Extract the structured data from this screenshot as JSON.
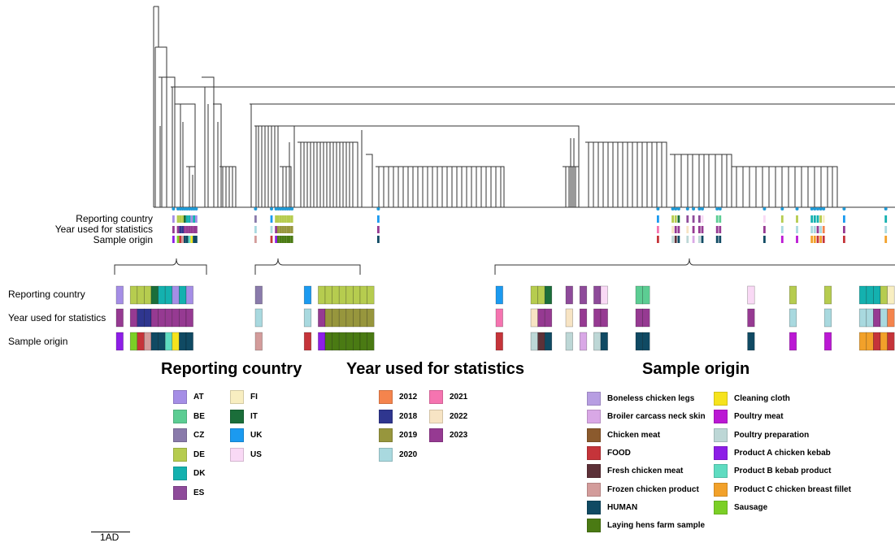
{
  "colors": {
    "AT": "#a58ee6",
    "BE": "#5ccd93",
    "CZ": "#8a7bab",
    "DE": "#b6cc4f",
    "DK": "#14b1af",
    "ES": "#8e4b9a",
    "FI": "#f8eec1",
    "IT": "#1b6e3a",
    "UK": "#1b9af0",
    "US": "#f9d9f5",
    "2012": "#f4844d",
    "2018": "#2f368f",
    "2019": "#97963d",
    "2020": "#a9d9df",
    "2021": "#f574b0",
    "2022": "#f7e4c4",
    "2023": "#963a92",
    "Boneless chicken legs": "#b79ee2",
    "Broiler carcass neck skin": "#d9a8e6",
    "Chicken meat": "#8b5a2d",
    "FOOD": "#c5343a",
    "Fresh chicken meat": "#5d3138",
    "Frozen chicken product": "#d39c9b",
    "HUMAN": "#104a63",
    "Laying hens farm sample": "#4a7a13",
    "Cleaning cloth": "#f6e31d",
    "Poultry meat": "#bb18d4",
    "Poultry preparation": "#bdd7d6",
    "Product A chicken kebab": "#8d1ee7",
    "Product B kebab product": "#5fdcc1",
    "Product C chicken breast fillet": "#f2a12a",
    "Sausage": "#7bcf26",
    "tree_line": "#333333",
    "tip_marker": "#1f9ad6"
  },
  "row_labels": [
    "Reporting country",
    "Year used for statistics",
    "Sample origin"
  ],
  "sections": {
    "country": {
      "title": "Reporting country",
      "items": [
        "AT",
        "BE",
        "CZ",
        "DE",
        "DK",
        "ES",
        "FI",
        "IT",
        "UK",
        "US"
      ]
    },
    "year": {
      "title": "Year used for statistics",
      "items": [
        "2012",
        "2018",
        "2019",
        "2020",
        "2021",
        "2022",
        "2023"
      ]
    },
    "origin": {
      "title": "Sample origin",
      "items": [
        "Boneless chicken legs",
        "Broiler carcass neck skin",
        "Chicken meat",
        "FOOD",
        "Fresh chicken meat",
        "Frozen chicken product",
        "HUMAN",
        "Laying hens farm sample",
        "Cleaning cloth",
        "Poultry meat",
        "Poultry preparation",
        "Product A chicken kebab",
        "Product B kebab product",
        "Product C chicken breast fillet",
        "Sausage"
      ]
    }
  },
  "zoom_groups": [
    [
      [
        "AT",
        "2023",
        "Product A chicken kebab"
      ],
      null,
      [
        "DE",
        "2023",
        "Sausage"
      ],
      [
        "DE",
        "2018",
        "FOOD"
      ],
      [
        "DE",
        "2018",
        "Frozen chicken product"
      ],
      [
        "IT",
        "2023",
        "HUMAN"
      ],
      [
        "DK",
        "2023",
        "HUMAN"
      ],
      [
        "DK",
        "2023",
        "Product B kebab product"
      ],
      [
        "AT",
        "2023",
        "Cleaning cloth"
      ],
      [
        "DK",
        "2023",
        "HUMAN"
      ],
      [
        "AT",
        "2023",
        "HUMAN"
      ]
    ],
    [
      [
        "CZ",
        "2020",
        "Frozen chicken product"
      ],
      null,
      null,
      null,
      null,
      null,
      null,
      [
        "UK",
        "2020",
        "FOOD"
      ],
      null,
      [
        "DE",
        "2023",
        "Product A chicken kebab"
      ],
      [
        "DE",
        "2019",
        "Laying hens farm sample"
      ],
      [
        "DE",
        "2019",
        "Laying hens farm sample"
      ],
      [
        "DE",
        "2019",
        "Laying hens farm sample"
      ],
      [
        "DE",
        "2019",
        "Laying hens farm sample"
      ],
      [
        "DE",
        "2019",
        "Laying hens farm sample"
      ],
      [
        "DE",
        "2019",
        "Laying hens farm sample"
      ],
      [
        "DE",
        "2019",
        "Laying hens farm sample"
      ]
    ],
    [
      [
        "UK",
        "2021",
        "FOOD"
      ],
      null,
      null,
      null,
      null,
      [
        "DE",
        "2022",
        "Poultry preparation"
      ],
      [
        "DE",
        "2023",
        "Fresh chicken meat"
      ],
      [
        "IT",
        "2023",
        "HUMAN"
      ],
      null,
      null,
      [
        "ES",
        "2022",
        "Poultry preparation"
      ],
      null,
      [
        "ES",
        "2023",
        "Broiler carcass neck skin"
      ],
      null,
      [
        "ES",
        "2023",
        "Poultry preparation"
      ],
      [
        "US",
        "2023",
        "HUMAN"
      ],
      null,
      null,
      null,
      null,
      [
        "BE",
        "2023",
        "HUMAN"
      ],
      [
        "BE",
        "2023",
        "HUMAN"
      ],
      null,
      null,
      null,
      null,
      null,
      null,
      null,
      null,
      null,
      null,
      null,
      null,
      null,
      null,
      [
        "US",
        "2023",
        "HUMAN"
      ],
      null,
      null,
      null,
      null,
      null,
      [
        "DE",
        "2020",
        "Poultry meat"
      ],
      null,
      null,
      null,
      null,
      [
        "DE",
        "2020",
        "Poultry meat"
      ],
      null,
      null,
      null,
      null,
      [
        "DK",
        "2020",
        "Product C chicken breast fillet"
      ],
      [
        "DK",
        "2020",
        "Product C chicken breast fillet"
      ],
      [
        "DK",
        "2023",
        "FOOD"
      ],
      [
        "DE",
        "2020",
        "Product C chicken breast fillet"
      ],
      [
        "FI",
        "2012",
        "FOOD"
      ],
      null,
      null,
      null,
      null,
      null,
      null,
      null,
      null,
      null,
      null,
      null,
      null,
      null,
      null,
      null,
      null,
      null,
      null,
      null,
      null,
      [
        "DK",
        "2020",
        "Product C chicken breast fillet"
      ]
    ]
  ],
  "scale_bar_label": "1AD"
}
